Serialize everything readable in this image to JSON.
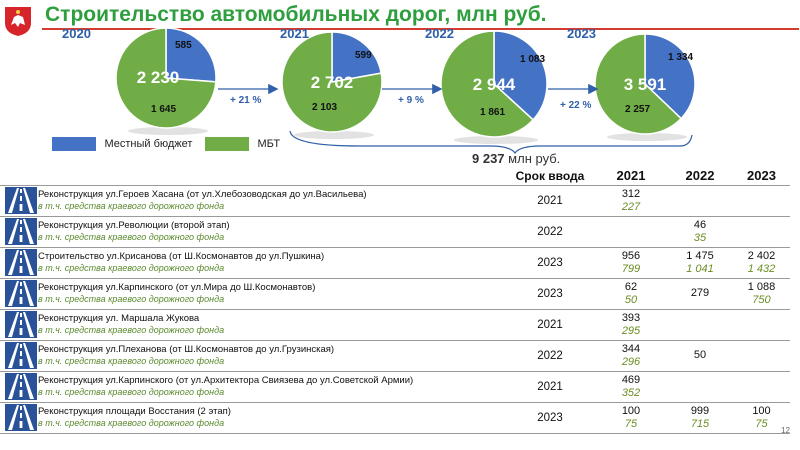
{
  "title": "Строительство автомобильных дорог, млн руб.",
  "chart_data": [
    {
      "type": "pie",
      "year": "2020",
      "total": "2 230",
      "slices": [
        {
          "name": "Местный бюджет",
          "value": 585,
          "label": "585"
        },
        {
          "name": "МБТ",
          "value": 1645,
          "label": "1 645"
        }
      ]
    },
    {
      "type": "pie",
      "year": "2021",
      "total": "2 702",
      "slices": [
        {
          "name": "Местный бюджет",
          "value": 599,
          "label": "599"
        },
        {
          "name": "МБТ",
          "value": 2103,
          "label": "2 103"
        }
      ]
    },
    {
      "type": "pie",
      "year": "2022",
      "total": "2 944",
      "slices": [
        {
          "name": "Местный бюджет",
          "value": 1083,
          "label": "1 083"
        },
        {
          "name": "МБТ",
          "value": 1861,
          "label": "1 861"
        }
      ]
    },
    {
      "type": "pie",
      "year": "2023",
      "total": "3 591",
      "slices": [
        {
          "name": "Местный бюджет",
          "value": 1334,
          "label": "1 334"
        },
        {
          "name": "МБТ",
          "value": 2257,
          "label": "2 257"
        }
      ]
    }
  ],
  "growth": [
    "+ 21 %",
    "+ 9 %",
    "+ 22 %"
  ],
  "colors": {
    "local": "#4472c4",
    "mbt": "#70ad47",
    "accent": "#2e9e3e",
    "rule": "#d53a2e",
    "arrow": "#2f5fa8"
  },
  "legend": {
    "local": "Местный бюджет",
    "mbt": "МБТ"
  },
  "total": {
    "value": "9 237",
    "unit": "млн руб."
  },
  "table": {
    "header": {
      "term": "Срок ввода",
      "y2021": "2021",
      "y2022": "2022",
      "y2023": "2023"
    },
    "sub_label": "в т.ч. средства краевого дорожного фонда",
    "rows": [
      {
        "name": "Реконструкция ул.Героев Хасана (от ул.Хлебозоводская до ул.Васильева)",
        "term": "2021",
        "v2021": "312",
        "s2021": "227",
        "v2022": "",
        "s2022": "",
        "v2023": "",
        "s2023": ""
      },
      {
        "name": "Реконструкция ул.Революции (второй этап)",
        "term": "2022",
        "v2021": "",
        "s2021": "",
        "v2022": "46",
        "s2022": "35",
        "v2023": "",
        "s2023": ""
      },
      {
        "name": "Строительство ул.Крисанова (от Ш.Космонавтов до ул.Пушкина)",
        "term": "2023",
        "v2021": "956",
        "s2021": "799",
        "v2022": "1 475",
        "s2022": "1 041",
        "v2023": "2 402",
        "s2023": "1 432"
      },
      {
        "name": "Реконструкция ул.Карпинского (от ул.Мира до Ш.Космонавтов)",
        "term": "2023",
        "v2021": "62",
        "s2021": "50",
        "v2022": "279",
        "s2022": "",
        "v2023": "1 088",
        "s2023": "750"
      },
      {
        "name": "Реконструкция ул. Маршала Жукова",
        "term": "2021",
        "v2021": "393",
        "s2021": "295",
        "v2022": "",
        "s2022": "",
        "v2023": "",
        "s2023": ""
      },
      {
        "name": "Реконструкция ул.Плеханова (от Ш.Космонавтов до ул.Грузинская)",
        "term": "2022",
        "v2021": "344",
        "s2021": "296",
        "v2022": "50",
        "s2022": "",
        "v2023": "",
        "s2023": ""
      },
      {
        "name": "Реконструкция ул.Карпинского (от ул.Архитектора Свиязева до ул.Советской Армии)",
        "term": "2021",
        "v2021": "469",
        "s2021": "352",
        "v2022": "",
        "s2022": "",
        "v2023": "",
        "s2023": ""
      },
      {
        "name": "Реконструкция площади Восстания (2 этап)",
        "term": "2023",
        "v2021": "100",
        "s2021": "75",
        "v2022": "999",
        "s2022": "715",
        "v2023": "100",
        "s2023": "75"
      }
    ]
  },
  "page_number": "12"
}
